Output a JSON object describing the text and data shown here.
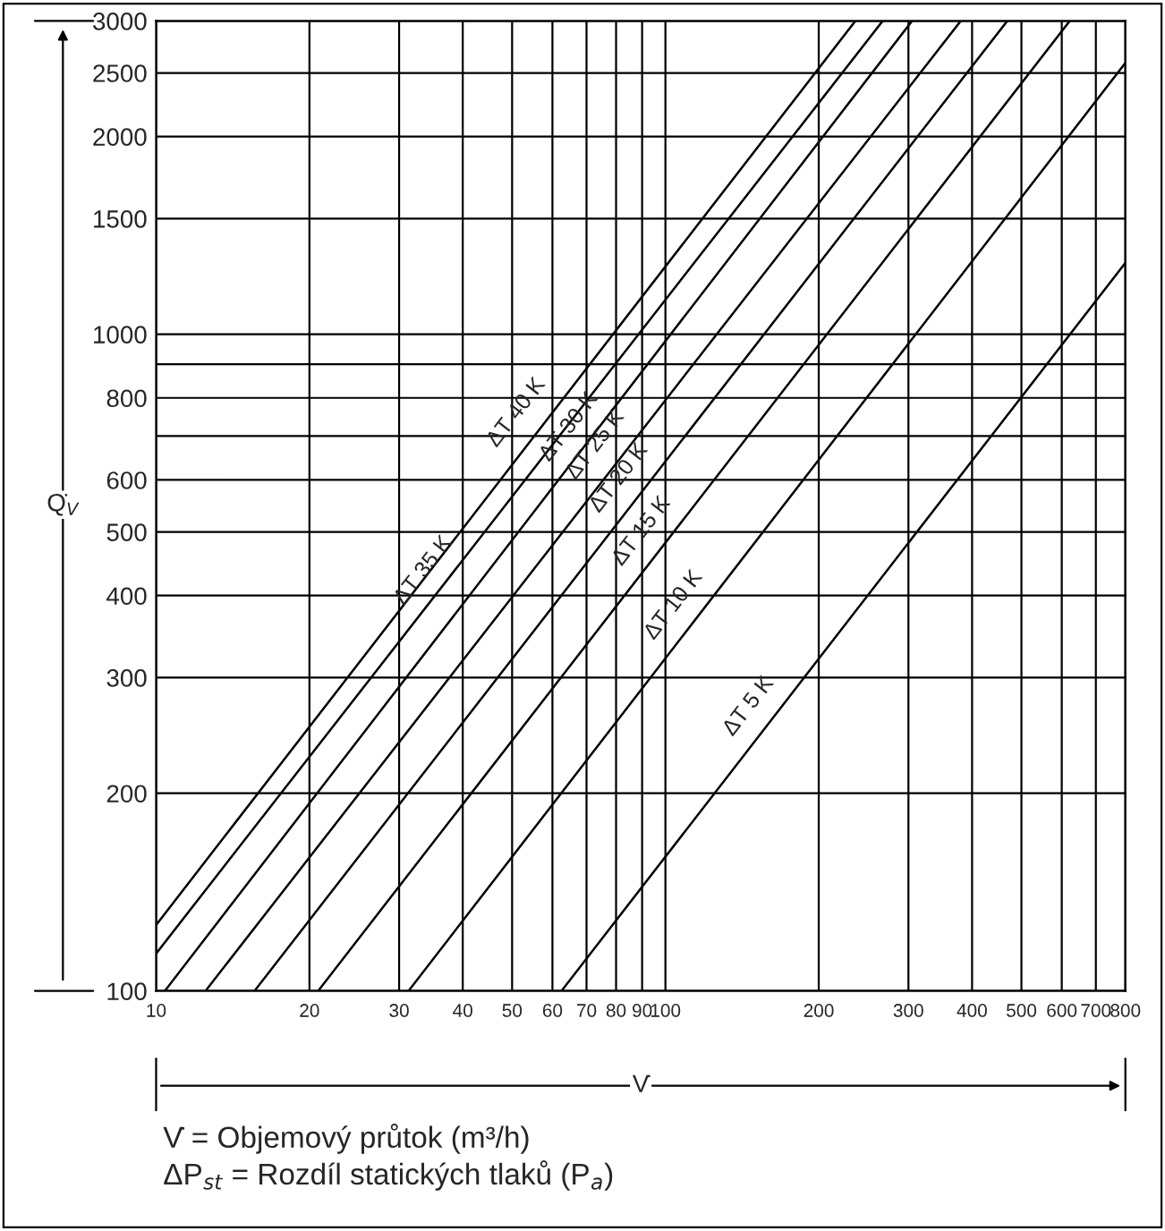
{
  "chart_data": {
    "type": "line",
    "xlabel": "V̇",
    "ylabel": "Q̇$_{V}$",
    "log": "xy",
    "grid": true,
    "legend": false,
    "marker": "none",
    "line_style": "solid",
    "xlim": [
      10,
      800
    ],
    "ylim": [
      100,
      3000
    ],
    "xticks": [
      10,
      20,
      30,
      40,
      50,
      60,
      70,
      80,
      90,
      100,
      200,
      300,
      400,
      500,
      600,
      700,
      800
    ],
    "yticks": [
      100,
      200,
      300,
      400,
      500,
      600,
      {
        "value": 700,
        "label": null
      },
      800,
      {
        "value": 900,
        "label": null
      },
      1000,
      1500,
      2000,
      2500,
      3000
    ],
    "series": [
      {
        "color": "#000000",
        "x": [
          10,
          236
        ],
        "values": [
          126,
          3000
        ]
      },
      {
        "color": "#000000",
        "x": [
          10,
          267
        ],
        "values": [
          114,
          3000
        ]
      },
      {
        "color": "#000000",
        "x": [
          10.4,
          305
        ],
        "values": [
          100,
          3000
        ]
      },
      {
        "color": "#000000",
        "x": [
          12.5,
          380
        ],
        "values": [
          100,
          3000
        ]
      },
      {
        "color": "#000000",
        "x": [
          15.6,
          469
        ],
        "values": [
          100,
          3000
        ]
      },
      {
        "color": "#000000",
        "x": [
          20.8,
          622
        ],
        "values": [
          100,
          3000
        ]
      },
      {
        "color": "#000000",
        "x": [
          31.3,
          800
        ],
        "values": [
          100,
          2590
        ]
      },
      {
        "color": "#000000",
        "x": [
          62.5,
          800
        ],
        "values": [
          100,
          1285
        ]
      }
    ],
    "annotations": [
      {
        "text": "ΔT 40 K",
        "x": 56,
        "y": 717
      },
      {
        "text": "ΔT 35 K",
        "x": 36.8,
        "y": 412
      },
      {
        "text": "ΔT 30 K",
        "x": 71,
        "y": 682
      },
      {
        "text": "ΔT 25 K",
        "x": 80,
        "y": 640
      },
      {
        "text": "ΔT 20 K",
        "x": 89,
        "y": 570
      },
      {
        "text": "ΔT 15 K",
        "x": 98.6,
        "y": 473
      },
      {
        "text": "ΔT 10 K",
        "x": 114,
        "y": 365
      },
      {
        "text": "ΔT 5 K",
        "x": 160,
        "y": 256
      },
      "V̇ = Objemový průtok (m³/h)",
      "ΔP$_{st}$ = Rozdíl statických tlaků (P$_{a}$)"
    ]
  }
}
